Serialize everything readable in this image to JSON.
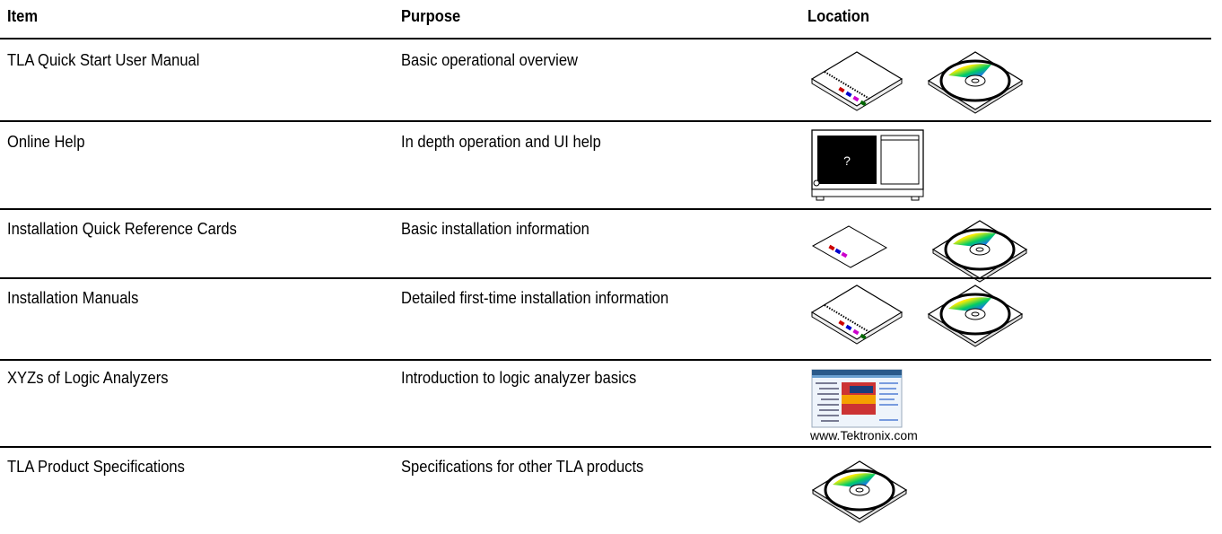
{
  "table": {
    "headers": [
      "Item",
      "Purpose",
      "Location"
    ],
    "rows": [
      {
        "item": "TLA Quick Start User Manual",
        "purpose": "Basic operational overview"
      },
      {
        "item": "Online Help",
        "purpose": "In depth operation and UI help",
        "icon_text": "?"
      },
      {
        "item": "Installation Quick Reference Cards",
        "purpose": "Basic installation information"
      },
      {
        "item": "Installation Manuals",
        "purpose": "Detailed first-time installation information"
      },
      {
        "item": "XYZs of Logic Analyzers",
        "purpose": "Introduction to logic analyzer basics",
        "caption": "www.Tektronix.com"
      },
      {
        "item": "TLA Product Specifications",
        "purpose": "Specifications for other TLA products"
      }
    ]
  }
}
